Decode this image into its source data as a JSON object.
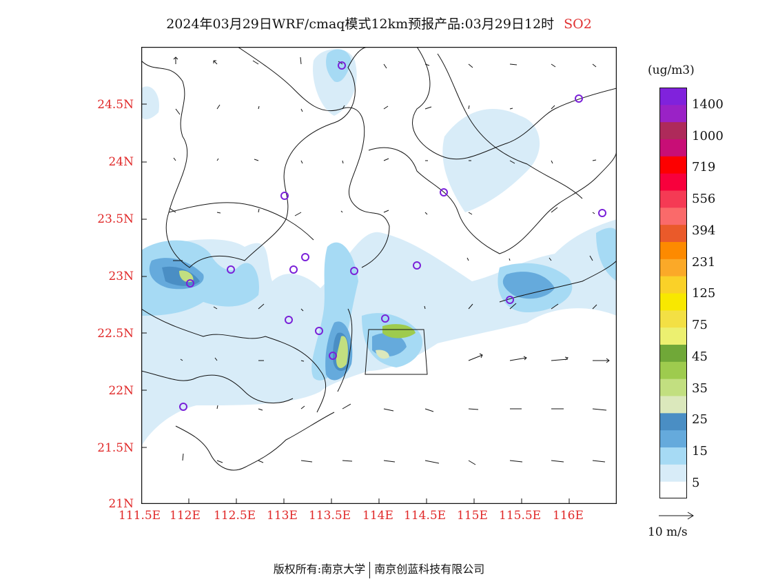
{
  "header": {
    "title": "2024年03月29日WRF/cmaq模式12km预报产品:03月29日12时",
    "pollutant": "SO2"
  },
  "axes": {
    "lat_labels": [
      "24.5N",
      "24N",
      "23.5N",
      "23N",
      "22.5N",
      "22N",
      "21.5N",
      "21N"
    ],
    "lon_labels": [
      "111.5E",
      "112E",
      "112.5E",
      "113E",
      "113.5E",
      "114E",
      "114.5E",
      "115E",
      "115.5E",
      "116E"
    ]
  },
  "legend": {
    "unit": "(ug/m3)",
    "levels": [
      "1400",
      "1000",
      "719",
      "556",
      "394",
      "231",
      "125",
      "75",
      "45",
      "35",
      "25",
      "15",
      "5"
    ],
    "colors": [
      "#ffffff",
      "#d8ecf8",
      "#a6daf4",
      "#65aadc",
      "#4a8ec4",
      "#dbe8bc",
      "#c2df80",
      "#9ecb4e",
      "#70a838",
      "#ecf070",
      "#f3e044",
      "#f8e800",
      "#fad128",
      "#fba928",
      "#fd8a00",
      "#ea5a2a",
      "#fa6a6a",
      "#f53a54",
      "#f8003c",
      "#fd0000",
      "#c80e76",
      "#ae2a5a",
      "#9a22c6",
      "#8022dc"
    ],
    "vector_label": "10 m/s"
  },
  "footer": {
    "left": "版权所有:南京大学",
    "right": "南京创蓝科技有限公司"
  }
}
